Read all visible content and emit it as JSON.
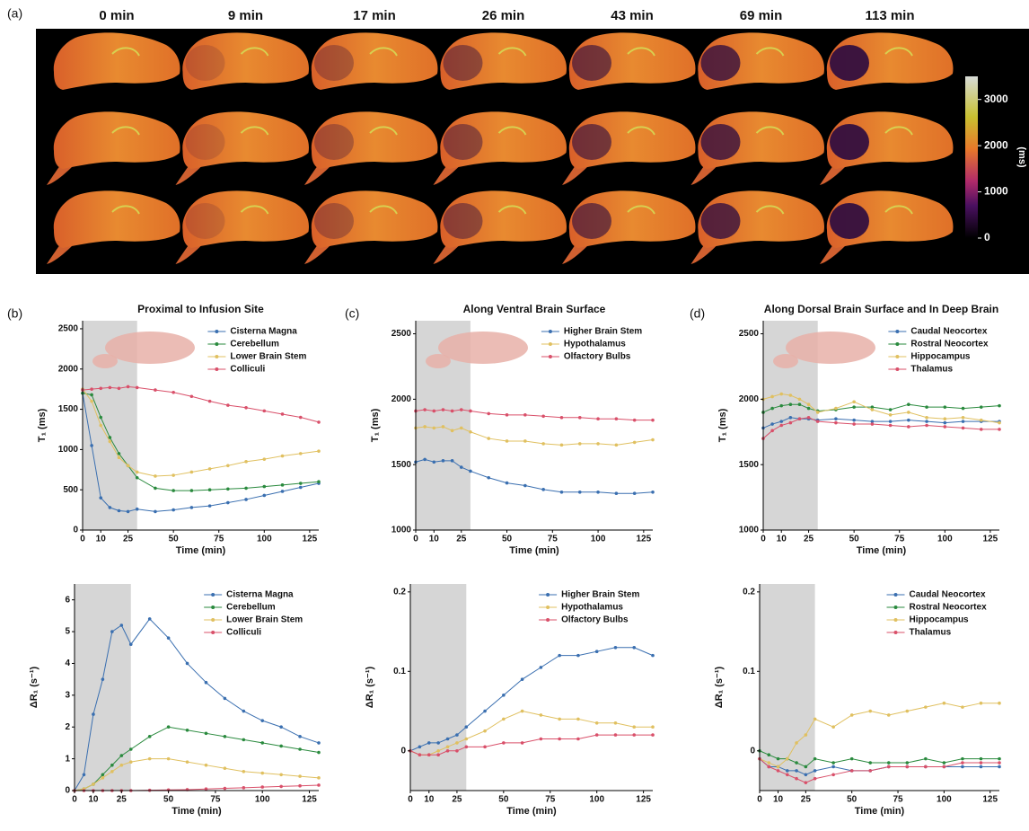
{
  "image_panel": {
    "label": "(a)",
    "columns": [
      "0 min",
      "9 min",
      "17 min",
      "26 min",
      "43 min",
      "69 min",
      "113 min"
    ],
    "colorbar": {
      "lim": [
        0,
        3500
      ],
      "ticks": [
        0,
        1000,
        2000,
        3000
      ],
      "label": "(ms)"
    }
  },
  "panel_labels": [
    "(b)",
    "(c)",
    "(d)"
  ],
  "chart_data": [
    {
      "type": "line",
      "title": "Proximal to Infusion Site",
      "xlabel": "Time (min)",
      "ylabel": "T₁ (ms)",
      "x": [
        0,
        5,
        10,
        15,
        20,
        25,
        30,
        40,
        50,
        60,
        70,
        80,
        90,
        100,
        110,
        120,
        130
      ],
      "xlim": [
        0,
        130
      ],
      "xticks": [
        0,
        10,
        25,
        50,
        75,
        100,
        125
      ],
      "ylim": [
        0,
        2600
      ],
      "yticks": [
        0,
        500,
        1000,
        1500,
        2000,
        2500
      ],
      "shaded_region": [
        0,
        30
      ],
      "legend": "upper right",
      "series": [
        {
          "name": "Cisterna Magna",
          "color": "#3a6fb0",
          "values": [
            1700,
            1050,
            400,
            280,
            240,
            230,
            260,
            230,
            250,
            280,
            300,
            340,
            380,
            430,
            480,
            530,
            580
          ]
        },
        {
          "name": "Cerebellum",
          "color": "#2a8a3e",
          "values": [
            1700,
            1680,
            1400,
            1150,
            950,
            800,
            650,
            520,
            490,
            490,
            500,
            510,
            520,
            540,
            560,
            580,
            600
          ]
        },
        {
          "name": "Lower Brain Stem",
          "color": "#e0c060",
          "values": [
            1750,
            1600,
            1300,
            1100,
            900,
            800,
            720,
            670,
            680,
            720,
            760,
            800,
            850,
            880,
            920,
            950,
            980
          ]
        },
        {
          "name": "Colliculi",
          "color": "#d9506a",
          "values": [
            1740,
            1750,
            1760,
            1770,
            1760,
            1780,
            1770,
            1740,
            1710,
            1660,
            1600,
            1550,
            1520,
            1480,
            1440,
            1400,
            1340
          ]
        }
      ]
    },
    {
      "type": "line",
      "title": "Along Ventral Brain Surface",
      "xlabel": "Time (min)",
      "ylabel": "T₁ (ms)",
      "x": [
        0,
        5,
        10,
        15,
        20,
        25,
        30,
        40,
        50,
        60,
        70,
        80,
        90,
        100,
        110,
        120,
        130
      ],
      "xlim": [
        0,
        130
      ],
      "xticks": [
        0,
        10,
        25,
        50,
        75,
        100,
        125
      ],
      "ylim": [
        1000,
        2600
      ],
      "yticks": [
        1000,
        1500,
        2000,
        2500
      ],
      "shaded_region": [
        0,
        30
      ],
      "legend": "upper right",
      "series": [
        {
          "name": "Higher Brain Stem",
          "color": "#3a6fb0",
          "values": [
            1520,
            1540,
            1520,
            1530,
            1530,
            1480,
            1450,
            1400,
            1360,
            1340,
            1310,
            1290,
            1290,
            1290,
            1280,
            1280,
            1290
          ]
        },
        {
          "name": "Hypothalamus",
          "color": "#e0c060",
          "values": [
            1780,
            1790,
            1780,
            1790,
            1760,
            1780,
            1750,
            1700,
            1680,
            1680,
            1660,
            1650,
            1660,
            1660,
            1650,
            1670,
            1690
          ]
        },
        {
          "name": "Olfactory Bulbs",
          "color": "#d9506a",
          "values": [
            1910,
            1920,
            1910,
            1920,
            1910,
            1920,
            1910,
            1890,
            1880,
            1880,
            1870,
            1860,
            1860,
            1850,
            1850,
            1840,
            1840
          ]
        }
      ]
    },
    {
      "type": "line",
      "title": "Along Dorsal Brain Surface and In Deep Brain",
      "xlabel": "Time (min)",
      "ylabel": "T₁ (ms)",
      "x": [
        0,
        5,
        10,
        15,
        20,
        25,
        30,
        40,
        50,
        60,
        70,
        80,
        90,
        100,
        110,
        120,
        130
      ],
      "xlim": [
        0,
        130
      ],
      "xticks": [
        0,
        10,
        25,
        50,
        75,
        100,
        125
      ],
      "ylim": [
        1000,
        2600
      ],
      "yticks": [
        1000,
        1500,
        2000,
        2500
      ],
      "shaded_region": [
        0,
        30
      ],
      "legend": "upper right",
      "series": [
        {
          "name": "Caudal Neocortex",
          "color": "#3a6fb0",
          "values": [
            1780,
            1810,
            1830,
            1860,
            1850,
            1850,
            1840,
            1850,
            1840,
            1830,
            1830,
            1840,
            1830,
            1820,
            1830,
            1830,
            1830
          ]
        },
        {
          "name": "Rostral Neocortex",
          "color": "#2a8a3e",
          "values": [
            1900,
            1930,
            1950,
            1960,
            1960,
            1930,
            1910,
            1920,
            1940,
            1940,
            1920,
            1960,
            1940,
            1940,
            1930,
            1940,
            1950
          ]
        },
        {
          "name": "Hippocampus",
          "color": "#e0c060",
          "values": [
            2000,
            2020,
            2040,
            2030,
            2000,
            1960,
            1900,
            1930,
            1980,
            1920,
            1880,
            1900,
            1860,
            1850,
            1860,
            1840,
            1820
          ]
        },
        {
          "name": "Thalamus",
          "color": "#d9506a",
          "values": [
            1700,
            1760,
            1800,
            1820,
            1850,
            1860,
            1830,
            1820,
            1810,
            1810,
            1800,
            1790,
            1800,
            1790,
            1780,
            1770,
            1770
          ]
        }
      ]
    },
    {
      "type": "line",
      "xlabel": "Time (min)",
      "ylabel": "ΔR₁ (s⁻¹)",
      "x": [
        0,
        5,
        10,
        15,
        20,
        25,
        30,
        40,
        50,
        60,
        70,
        80,
        90,
        100,
        110,
        120,
        130
      ],
      "xlim": [
        0,
        130
      ],
      "xticks": [
        0,
        10,
        25,
        50,
        75,
        100,
        125
      ],
      "ylim": [
        0,
        6.5
      ],
      "yticks": [
        0,
        1,
        2,
        3,
        4,
        5,
        6
      ],
      "shaded_region": [
        0,
        30
      ],
      "legend": "upper right",
      "series": [
        {
          "name": "Cisterna Magna",
          "color": "#3a6fb0",
          "values": [
            0,
            0.5,
            2.4,
            3.5,
            5.0,
            5.2,
            4.6,
            5.4,
            4.8,
            4.0,
            3.4,
            2.9,
            2.5,
            2.2,
            2.0,
            1.7,
            1.5
          ]
        },
        {
          "name": "Cerebellum",
          "color": "#2a8a3e",
          "values": [
            0,
            0.05,
            0.2,
            0.5,
            0.8,
            1.1,
            1.3,
            1.7,
            2.0,
            1.9,
            1.8,
            1.7,
            1.6,
            1.5,
            1.4,
            1.3,
            1.2
          ]
        },
        {
          "name": "Lower Brain Stem",
          "color": "#e0c060",
          "values": [
            0,
            0.05,
            0.2,
            0.4,
            0.6,
            0.8,
            0.9,
            1.0,
            1.0,
            0.9,
            0.8,
            0.7,
            0.6,
            0.55,
            0.5,
            0.45,
            0.4
          ]
        },
        {
          "name": "Colliculi",
          "color": "#d9506a",
          "values": [
            0,
            0,
            0,
            0,
            0,
            0,
            0,
            0.01,
            0.02,
            0.03,
            0.05,
            0.07,
            0.09,
            0.11,
            0.13,
            0.15,
            0.17
          ]
        }
      ]
    },
    {
      "type": "line",
      "xlabel": "Time (min)",
      "ylabel": "ΔR₁ (s⁻¹)",
      "x": [
        0,
        5,
        10,
        15,
        20,
        25,
        30,
        40,
        50,
        60,
        70,
        80,
        90,
        100,
        110,
        120,
        130
      ],
      "xlim": [
        0,
        130
      ],
      "xticks": [
        0,
        10,
        25,
        50,
        75,
        100,
        125
      ],
      "ylim": [
        -0.05,
        0.21
      ],
      "yticks": [
        0,
        0.1,
        0.2
      ],
      "shaded_region": [
        0,
        30
      ],
      "legend": "upper right",
      "series": [
        {
          "name": "Higher Brain Stem",
          "color": "#3a6fb0",
          "values": [
            0,
            0.005,
            0.01,
            0.01,
            0.015,
            0.02,
            0.03,
            0.05,
            0.07,
            0.09,
            0.105,
            0.12,
            0.12,
            0.125,
            0.13,
            0.13,
            0.12
          ]
        },
        {
          "name": "Hypothalamus",
          "color": "#e0c060",
          "values": [
            0,
            -0.005,
            -0.005,
            0,
            0.005,
            0.01,
            0.015,
            0.025,
            0.04,
            0.05,
            0.045,
            0.04,
            0.04,
            0.035,
            0.035,
            0.03,
            0.03
          ]
        },
        {
          "name": "Olfactory Bulbs",
          "color": "#d9506a",
          "values": [
            0,
            -0.005,
            -0.005,
            -0.005,
            0,
            0,
            0.005,
            0.005,
            0.01,
            0.01,
            0.015,
            0.015,
            0.015,
            0.02,
            0.02,
            0.02,
            0.02
          ]
        }
      ]
    },
    {
      "type": "line",
      "xlabel": "Time (min)",
      "ylabel": "ΔR₁ (s⁻¹)",
      "x": [
        0,
        5,
        10,
        15,
        20,
        25,
        30,
        40,
        50,
        60,
        70,
        80,
        90,
        100,
        110,
        120,
        130
      ],
      "xlim": [
        0,
        130
      ],
      "xticks": [
        0,
        10,
        25,
        50,
        75,
        100,
        125
      ],
      "ylim": [
        -0.05,
        0.21
      ],
      "yticks": [
        0,
        0.1,
        0.2
      ],
      "shaded_region": [
        0,
        30
      ],
      "legend": "upper right",
      "series": [
        {
          "name": "Caudal Neocortex",
          "color": "#3a6fb0",
          "values": [
            -0.01,
            -0.02,
            -0.02,
            -0.025,
            -0.025,
            -0.03,
            -0.025,
            -0.02,
            -0.025,
            -0.025,
            -0.02,
            -0.02,
            -0.02,
            -0.02,
            -0.02,
            -0.02,
            -0.02
          ]
        },
        {
          "name": "Rostral Neocortex",
          "color": "#2a8a3e",
          "values": [
            0,
            -0.005,
            -0.01,
            -0.01,
            -0.015,
            -0.02,
            -0.01,
            -0.015,
            -0.01,
            -0.015,
            -0.015,
            -0.015,
            -0.01,
            -0.015,
            -0.01,
            -0.01,
            -0.01
          ]
        },
        {
          "name": "Hippocampus",
          "color": "#e0c060",
          "values": [
            -0.01,
            -0.015,
            -0.02,
            -0.01,
            0.01,
            0.02,
            0.04,
            0.03,
            0.045,
            0.05,
            0.045,
            0.05,
            0.055,
            0.06,
            0.055,
            0.06,
            0.06
          ]
        },
        {
          "name": "Thalamus",
          "color": "#d9506a",
          "values": [
            -0.01,
            -0.02,
            -0.025,
            -0.03,
            -0.035,
            -0.04,
            -0.035,
            -0.03,
            -0.025,
            -0.025,
            -0.02,
            -0.02,
            -0.02,
            -0.02,
            -0.015,
            -0.015,
            -0.015
          ]
        }
      ]
    }
  ]
}
